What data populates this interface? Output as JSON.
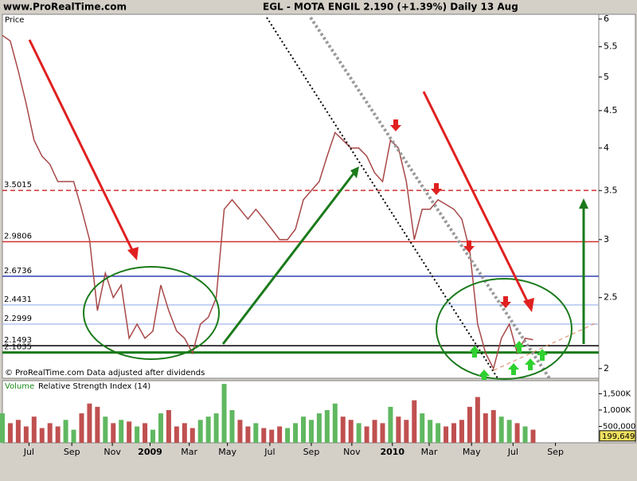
{
  "chart_data": [
    {
      "type": "line",
      "site": "www.ProRealTime.com",
      "title": "EGL - MOTA ENGIL    2.190 (+1.39%)    Daily  13 Aug",
      "ylabel": "Price",
      "note": "© ProRealTime.com Data adjusted after dividends",
      "color": "#a84848",
      "log": true,
      "ylim": [
        1.94,
        6.09
      ],
      "yticks": [
        2,
        2.5,
        3,
        3.5,
        4,
        4.5,
        5,
        5.5,
        6
      ],
      "xlim": [
        0,
        128
      ],
      "xticks": [
        {
          "value": 5.7,
          "label": "Jul"
        },
        {
          "value": 14.9,
          "label": "Sep"
        },
        {
          "value": 23.6,
          "label": "Nov"
        },
        {
          "value": 31.7,
          "label": "2009"
        },
        {
          "value": 40.1,
          "label": "Mar"
        },
        {
          "value": 48.3,
          "label": "May"
        },
        {
          "value": 57.4,
          "label": "Jul"
        },
        {
          "value": 66.3,
          "label": "Sep"
        },
        {
          "value": 75.0,
          "label": "Nov"
        },
        {
          "value": 83.7,
          "label": "2010"
        },
        {
          "value": 91.6,
          "label": "Mar"
        },
        {
          "value": 100.7,
          "label": "May"
        },
        {
          "value": 109.6,
          "label": "Jul"
        },
        {
          "value": 118.7,
          "label": "Sep"
        }
      ],
      "levels": [
        {
          "value": 3.5015,
          "color": "#d03030",
          "dash": true
        },
        {
          "value": 2.9806,
          "color": "#d03030",
          "dash": false
        },
        {
          "value": 2.6736,
          "color": "#3040b0",
          "dash": false
        },
        {
          "value": 2.4431,
          "color": "#b0c4f0",
          "dash": false
        },
        {
          "value": 2.2999,
          "color": "#b0c4f0",
          "dash": false
        },
        {
          "value": 2.1493,
          "color": "#000000",
          "dash": false
        },
        {
          "value": 2.1035,
          "color": "#1a7a1a",
          "dash": false
        }
      ],
      "x": [
        0,
        1.7,
        3.4,
        5.1,
        6.8,
        8.5,
        10.2,
        11.9,
        13.6,
        15.3,
        17,
        18.7,
        20.4,
        22.1,
        23.8,
        25.5,
        27.2,
        28.9,
        30.6,
        32.3,
        34,
        35.7,
        37.4,
        39.1,
        40.8,
        42.5,
        44.2,
        45.9,
        47.6,
        49.3,
        51,
        52.7,
        54.4,
        56.1,
        57.8,
        59.5,
        61.2,
        62.9,
        64.6,
        66.3,
        68,
        69.7,
        71.4,
        73.1,
        74.8,
        76.5,
        78.2,
        79.9,
        81.6,
        83.3,
        85,
        86.7,
        88.4,
        90.1,
        91.8,
        93.5,
        95.2,
        96.9,
        98.6,
        100.3,
        102,
        103.7,
        105.4,
        107.1,
        108.8,
        110.5,
        112.2,
        113.9
      ],
      "values": [
        5.7,
        5.6,
        5.1,
        4.6,
        4.1,
        3.9,
        3.8,
        3.6,
        3.6,
        3.6,
        3.3,
        3.0,
        2.4,
        2.7,
        2.5,
        2.6,
        2.2,
        2.3,
        2.2,
        2.25,
        2.6,
        2.4,
        2.25,
        2.2,
        2.1,
        2.3,
        2.35,
        2.5,
        3.3,
        3.4,
        3.3,
        3.2,
        3.3,
        3.2,
        3.1,
        3.0,
        3.0,
        3.1,
        3.4,
        3.5,
        3.6,
        3.9,
        4.2,
        4.1,
        4.0,
        4.0,
        3.9,
        3.7,
        3.6,
        4.1,
        4.0,
        3.6,
        3.0,
        3.3,
        3.3,
        3.4,
        3.35,
        3.3,
        3.2,
        2.9,
        2.3,
        2.1,
        2.0,
        2.2,
        2.3,
        2.1,
        2.2,
        2.19
      ]
    },
    {
      "type": "bar",
      "ylabel": "Volume",
      "indicator": "Relative Strength Index (14)",
      "up_color": "#60b860",
      "down_color": "#c05050",
      "ylim": [
        0,
        1900000
      ],
      "yticks": [
        {
          "value": 500000,
          "label": "500,000"
        },
        {
          "value": 1000000,
          "label": "1,000K"
        },
        {
          "value": 1500000,
          "label": "1,500K"
        }
      ],
      "values": [
        900000,
        600000,
        700000,
        500000,
        800000,
        450000,
        600000,
        500000,
        700000,
        400000,
        900000,
        1200000,
        1100000,
        800000,
        600000,
        700000,
        650000,
        500000,
        600000,
        400000,
        900000,
        1000000,
        500000,
        600000,
        450000,
        700000,
        800000,
        900000,
        1800000,
        1000000,
        700000,
        500000,
        600000,
        450000,
        400000,
        500000,
        450000,
        600000,
        800000,
        700000,
        900000,
        1000000,
        1200000,
        800000,
        700000,
        600000,
        500000,
        700000,
        600000,
        1100000,
        800000,
        700000,
        1300000,
        900000,
        700000,
        600000,
        500000,
        600000,
        700000,
        1100000,
        1400000,
        900000,
        1000000,
        800000,
        700000,
        600000,
        500000,
        400000
      ],
      "last": {
        "value": 199649,
        "label": "199,649"
      }
    }
  ]
}
